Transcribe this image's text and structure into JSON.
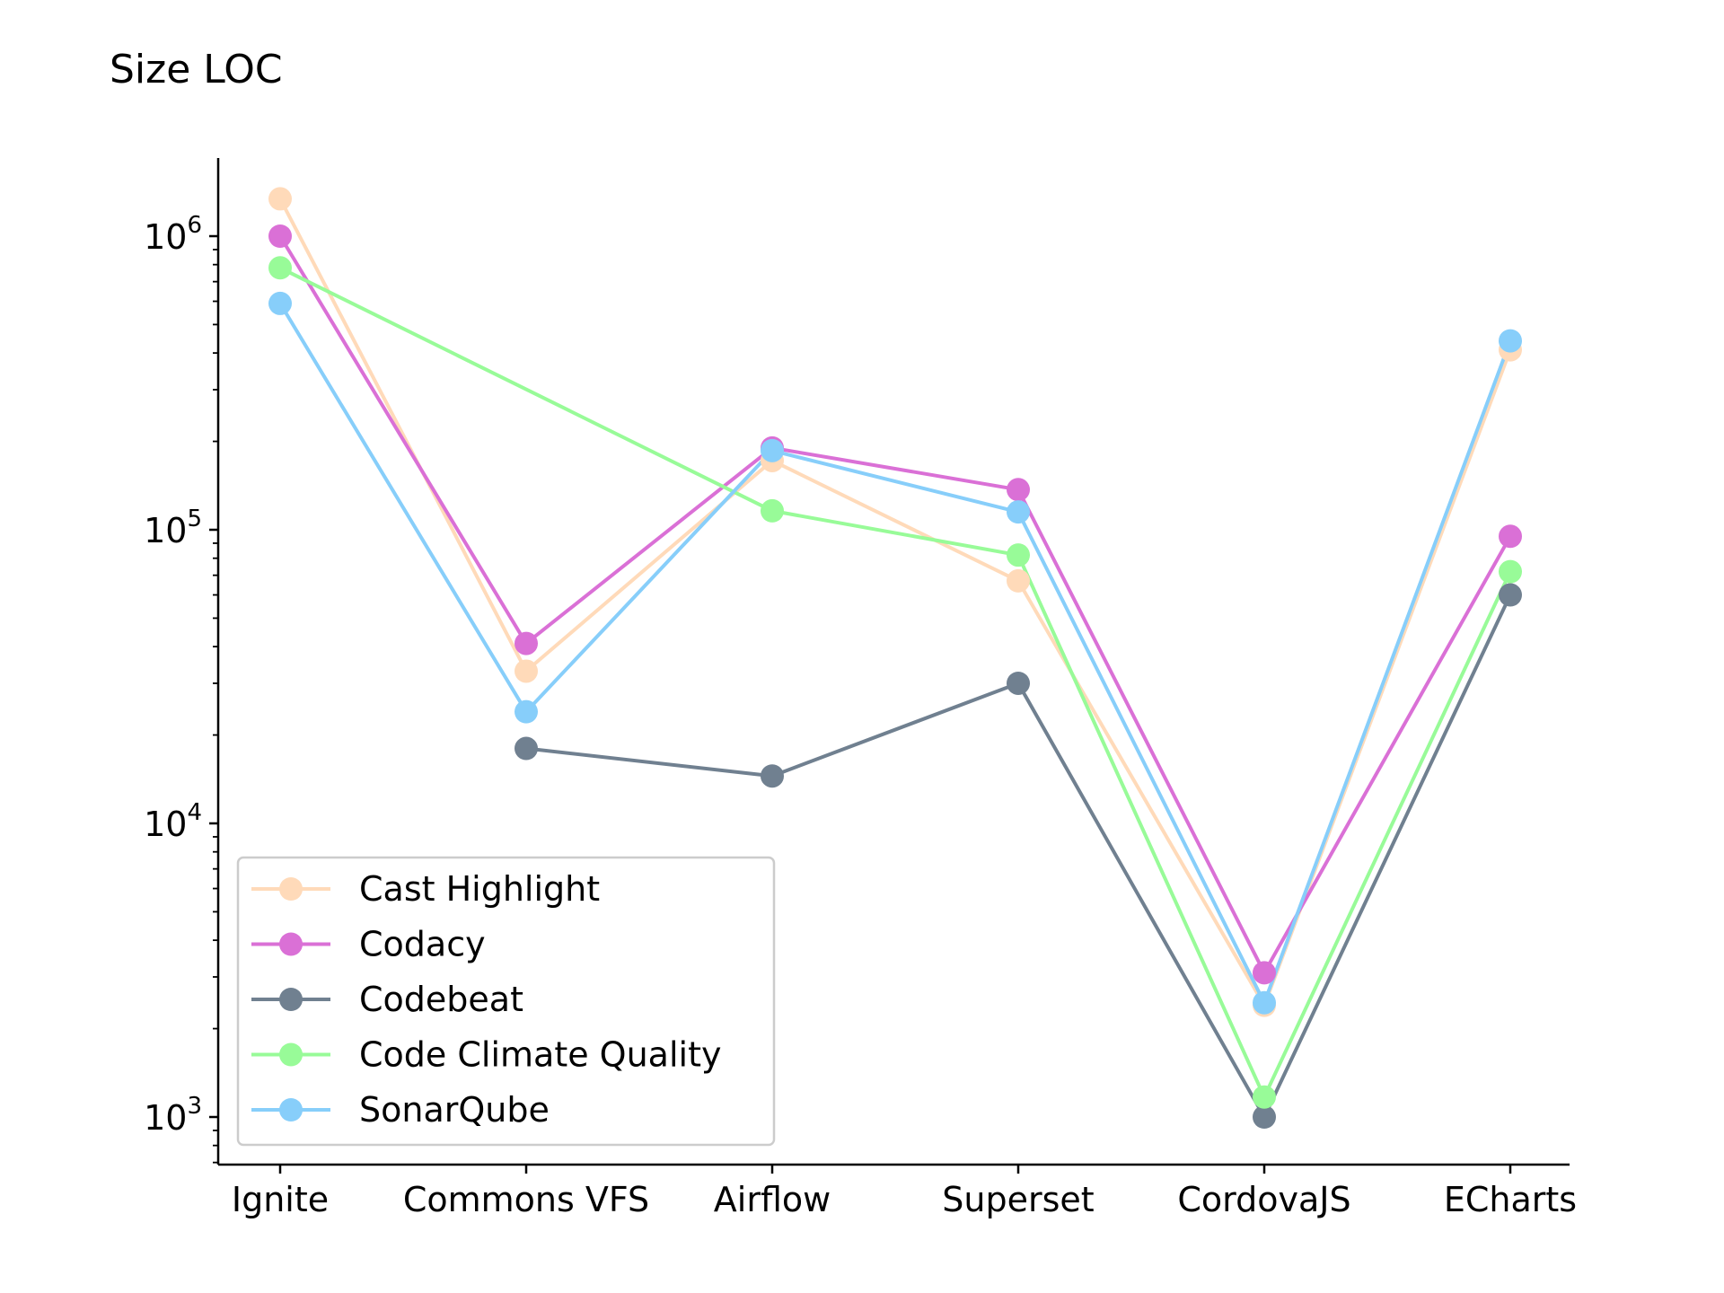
{
  "chart_data": {
    "type": "line",
    "title": "Size LOC",
    "xlabel": "",
    "ylabel": "",
    "yscale": "log",
    "ylim": [
      700,
      2000000
    ],
    "grid": false,
    "legend_position": "lower-left",
    "categories": [
      "Ignite",
      "Commons VFS",
      "Airflow",
      "Superset",
      "CordovaJS",
      "ECharts"
    ],
    "y_ticks": [
      {
        "base": "10",
        "exp": "3",
        "value": 1000
      },
      {
        "base": "10",
        "exp": "4",
        "value": 10000
      },
      {
        "base": "10",
        "exp": "5",
        "value": 100000
      },
      {
        "base": "10",
        "exp": "6",
        "value": 1000000
      }
    ],
    "series": [
      {
        "name": "Cast Highlight",
        "color": "#ffdab9",
        "values": [
          1340000,
          33000,
          172000,
          67000,
          2400,
          410000
        ]
      },
      {
        "name": "Codacy",
        "color": "#da70d6",
        "values": [
          1000000,
          41000,
          190000,
          137000,
          3100,
          95000
        ]
      },
      {
        "name": "Codebeat",
        "color": "#708090",
        "values": [
          null,
          18000,
          14500,
          30000,
          1000,
          60000
        ]
      },
      {
        "name": "Code Climate Quality",
        "color": "#98fb98",
        "values": [
          780000,
          null,
          116000,
          82000,
          1170,
          72000
        ]
      },
      {
        "name": "SonarQube",
        "color": "#87cefa",
        "values": [
          590000,
          24000,
          186000,
          115000,
          2450,
          440000
        ]
      }
    ]
  }
}
